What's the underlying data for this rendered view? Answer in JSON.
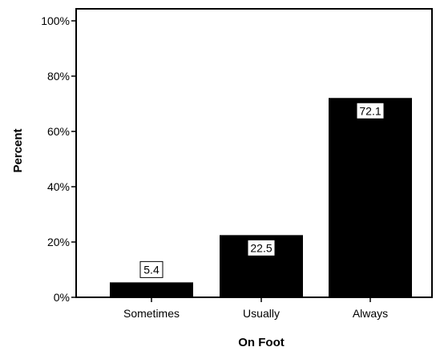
{
  "chart_data": {
    "type": "bar",
    "categories": [
      "Sometimes",
      "Usually",
      "Always"
    ],
    "values": [
      5.4,
      22.5,
      72.1
    ],
    "data_labels": [
      "5.4",
      "22.5",
      "72.1"
    ],
    "xlabel": "On Foot",
    "ylabel": "Percent",
    "ylim": [
      0,
      100
    ],
    "yticks": [
      0,
      20,
      40,
      60,
      80,
      100
    ],
    "ytick_labels": [
      "0%",
      "20%",
      "40%",
      "60%",
      "80%",
      "100%"
    ],
    "grid": false,
    "bar_color": "#000000",
    "label_box_color": "#ffffff"
  }
}
